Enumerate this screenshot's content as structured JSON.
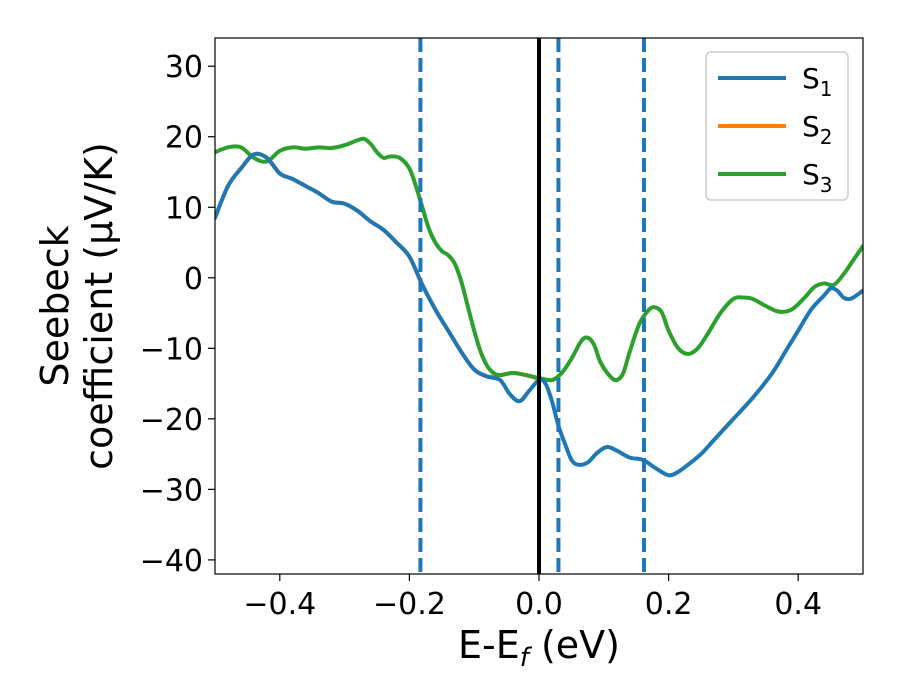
{
  "chart_data": {
    "type": "line",
    "title": "",
    "xlabel": "E-E",
    "xlabel_sub": "f",
    "xlabel_unit": " (eV)",
    "ylabel_line1": "Seebeck",
    "ylabel_line2": "coefficient  (μV/K)",
    "xlim": [
      -0.5,
      0.5
    ],
    "ylim": [
      -42,
      34
    ],
    "x_ticks": [
      -0.4,
      -0.2,
      0.0,
      0.2,
      0.4
    ],
    "x_tick_labels": [
      "−0.4",
      "−0.2",
      "0.0",
      "0.2",
      "0.4"
    ],
    "y_ticks": [
      -40,
      -30,
      -20,
      -10,
      0,
      10,
      20,
      30
    ],
    "y_tick_labels": [
      "−40",
      "−30",
      "−20",
      "−10",
      "0",
      "10",
      "20",
      "30"
    ],
    "grid": false,
    "legend_position": "top-right",
    "series": [
      {
        "name": "S",
        "name_sub": "1",
        "color": "#1f77b4",
        "points": [
          [
            -0.5,
            8.5
          ],
          [
            -0.48,
            13.0
          ],
          [
            -0.46,
            15.5
          ],
          [
            -0.44,
            17.5
          ],
          [
            -0.42,
            17.0
          ],
          [
            -0.4,
            14.8
          ],
          [
            -0.38,
            14.0
          ],
          [
            -0.36,
            13.0
          ],
          [
            -0.34,
            12.0
          ],
          [
            -0.32,
            10.8
          ],
          [
            -0.3,
            10.5
          ],
          [
            -0.28,
            9.5
          ],
          [
            -0.26,
            8.0
          ],
          [
            -0.24,
            6.8
          ],
          [
            -0.22,
            5.0
          ],
          [
            -0.2,
            3.0
          ],
          [
            -0.18,
            -1.0
          ],
          [
            -0.16,
            -4.5
          ],
          [
            -0.14,
            -7.5
          ],
          [
            -0.12,
            -10.5
          ],
          [
            -0.1,
            -13.0
          ],
          [
            -0.08,
            -14.0
          ],
          [
            -0.06,
            -14.5
          ],
          [
            -0.045,
            -16.5
          ],
          [
            -0.03,
            -17.5
          ],
          [
            -0.015,
            -16.0
          ],
          [
            0.0,
            -14.5
          ],
          [
            0.01,
            -15.0
          ],
          [
            0.02,
            -17.5
          ],
          [
            0.03,
            -21.0
          ],
          [
            0.04,
            -23.5
          ],
          [
            0.05,
            -25.8
          ],
          [
            0.06,
            -26.5
          ],
          [
            0.075,
            -26.2
          ],
          [
            0.09,
            -24.8
          ],
          [
            0.105,
            -24.0
          ],
          [
            0.12,
            -24.5
          ],
          [
            0.14,
            -25.5
          ],
          [
            0.16,
            -25.8
          ],
          [
            0.18,
            -27.0
          ],
          [
            0.2,
            -28.0
          ],
          [
            0.215,
            -27.5
          ],
          [
            0.23,
            -26.5
          ],
          [
            0.25,
            -25.0
          ],
          [
            0.27,
            -23.0
          ],
          [
            0.3,
            -20.0
          ],
          [
            0.33,
            -17.0
          ],
          [
            0.36,
            -13.5
          ],
          [
            0.38,
            -10.5
          ],
          [
            0.4,
            -7.5
          ],
          [
            0.42,
            -4.5
          ],
          [
            0.44,
            -2.5
          ],
          [
            0.45,
            -1.5
          ],
          [
            0.46,
            -1.8
          ],
          [
            0.47,
            -2.8
          ],
          [
            0.48,
            -3.0
          ],
          [
            0.49,
            -2.5
          ],
          [
            0.5,
            -1.8
          ]
        ]
      },
      {
        "name": "S",
        "name_sub": "2",
        "color": "#ff7f0e",
        "points": [
          [
            -0.5,
            8.5
          ],
          [
            -0.48,
            13.0
          ],
          [
            -0.46,
            15.5
          ],
          [
            -0.44,
            17.5
          ],
          [
            -0.42,
            17.0
          ],
          [
            -0.4,
            14.8
          ],
          [
            -0.38,
            14.0
          ],
          [
            -0.36,
            13.0
          ],
          [
            -0.34,
            12.0
          ],
          [
            -0.32,
            10.8
          ],
          [
            -0.3,
            10.5
          ],
          [
            -0.28,
            9.5
          ],
          [
            -0.26,
            8.0
          ],
          [
            -0.24,
            6.8
          ],
          [
            -0.22,
            5.0
          ],
          [
            -0.2,
            3.0
          ],
          [
            -0.18,
            -1.0
          ],
          [
            -0.16,
            -4.5
          ],
          [
            -0.14,
            -7.5
          ],
          [
            -0.12,
            -10.5
          ],
          [
            -0.1,
            -13.0
          ],
          [
            -0.08,
            -14.0
          ],
          [
            -0.06,
            -13.8
          ],
          [
            -0.04,
            -13.5
          ],
          [
            -0.02,
            -13.8
          ],
          [
            0.0,
            -14.3
          ],
          [
            0.02,
            -14.5
          ],
          [
            0.03,
            -14.0
          ]
        ]
      },
      {
        "name": "S",
        "name_sub": "3",
        "color": "#2ca02c",
        "points": [
          [
            -0.5,
            17.8
          ],
          [
            -0.48,
            18.5
          ],
          [
            -0.46,
            18.5
          ],
          [
            -0.44,
            17.0
          ],
          [
            -0.42,
            16.5
          ],
          [
            -0.4,
            18.0
          ],
          [
            -0.38,
            18.5
          ],
          [
            -0.36,
            18.3
          ],
          [
            -0.34,
            18.5
          ],
          [
            -0.32,
            18.4
          ],
          [
            -0.3,
            18.8
          ],
          [
            -0.28,
            19.5
          ],
          [
            -0.27,
            19.7
          ],
          [
            -0.26,
            19.0
          ],
          [
            -0.25,
            17.8
          ],
          [
            -0.24,
            17.0
          ],
          [
            -0.23,
            17.2
          ],
          [
            -0.215,
            17.0
          ],
          [
            -0.2,
            15.5
          ],
          [
            -0.19,
            13.0
          ],
          [
            -0.18,
            10.0
          ],
          [
            -0.17,
            7.0
          ],
          [
            -0.16,
            5.0
          ],
          [
            -0.15,
            3.8
          ],
          [
            -0.14,
            3.2
          ],
          [
            -0.13,
            2.0
          ],
          [
            -0.12,
            -0.5
          ],
          [
            -0.11,
            -4.0
          ],
          [
            -0.1,
            -7.5
          ],
          [
            -0.09,
            -10.5
          ],
          [
            -0.08,
            -12.5
          ],
          [
            -0.07,
            -13.5
          ],
          [
            -0.06,
            -13.8
          ],
          [
            -0.04,
            -13.5
          ],
          [
            -0.02,
            -13.8
          ],
          [
            0.0,
            -14.2
          ],
          [
            0.02,
            -14.5
          ],
          [
            0.035,
            -13.5
          ],
          [
            0.05,
            -11.5
          ],
          [
            0.065,
            -9.0
          ],
          [
            0.075,
            -8.5
          ],
          [
            0.085,
            -9.5
          ],
          [
            0.095,
            -12.0
          ],
          [
            0.11,
            -14.0
          ],
          [
            0.12,
            -14.5
          ],
          [
            0.13,
            -13.5
          ],
          [
            0.14,
            -10.5
          ],
          [
            0.155,
            -6.5
          ],
          [
            0.17,
            -4.5
          ],
          [
            0.18,
            -4.2
          ],
          [
            0.19,
            -5.0
          ],
          [
            0.2,
            -7.5
          ],
          [
            0.215,
            -10.0
          ],
          [
            0.23,
            -10.8
          ],
          [
            0.245,
            -10.0
          ],
          [
            0.26,
            -8.0
          ],
          [
            0.28,
            -5.0
          ],
          [
            0.3,
            -3.0
          ],
          [
            0.315,
            -2.8
          ],
          [
            0.33,
            -3.0
          ],
          [
            0.35,
            -4.0
          ],
          [
            0.37,
            -4.8
          ],
          [
            0.39,
            -4.5
          ],
          [
            0.41,
            -2.8
          ],
          [
            0.425,
            -1.3
          ],
          [
            0.44,
            -0.8
          ],
          [
            0.455,
            -1.0
          ],
          [
            0.47,
            0.5
          ],
          [
            0.485,
            2.5
          ],
          [
            0.5,
            4.5
          ]
        ]
      }
    ],
    "vlines": [
      {
        "x": 0.0,
        "style": "solid",
        "color": "#000000"
      },
      {
        "x": -0.183,
        "style": "dashed",
        "color": "#1f77b4"
      },
      {
        "x": 0.03,
        "style": "dashed",
        "color": "#1f77b4"
      },
      {
        "x": 0.162,
        "style": "dashed",
        "color": "#1f77b4"
      }
    ]
  }
}
